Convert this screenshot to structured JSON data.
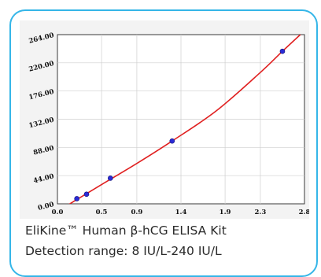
{
  "chart_data": {
    "type": "scatter",
    "title": "",
    "xlabel": "",
    "ylabel": "",
    "xlim": [
      0.0,
      2.8
    ],
    "ylim": [
      0.0,
      264.0
    ],
    "x_ticks": [
      "0.0",
      "0.5",
      "0.9",
      "1.4",
      "1.9",
      "2.3",
      "2.8"
    ],
    "x_tick_values": [
      0.0,
      0.5,
      0.9,
      1.4,
      1.9,
      2.3,
      2.8
    ],
    "y_ticks": [
      "0.00",
      "44.00",
      "88.00",
      "132.00",
      "176.00",
      "220.00",
      "264.00"
    ],
    "y_tick_values": [
      0,
      44,
      88,
      132,
      176,
      220,
      264
    ],
    "grid": true,
    "legend": "none",
    "series": [
      {
        "kind": "points",
        "color": "#2b2bd6",
        "points": [
          {
            "x": 0.22,
            "y": 8
          },
          {
            "x": 0.33,
            "y": 15
          },
          {
            "x": 0.6,
            "y": 40
          },
          {
            "x": 1.3,
            "y": 98
          },
          {
            "x": 2.55,
            "y": 238
          }
        ]
      },
      {
        "kind": "fit-curve",
        "color": "#e02020",
        "points": [
          {
            "x": 0.0,
            "y": -12
          },
          {
            "x": 0.2,
            "y": 5
          },
          {
            "x": 0.5,
            "y": 30
          },
          {
            "x": 0.9,
            "y": 63
          },
          {
            "x": 1.3,
            "y": 98
          },
          {
            "x": 1.8,
            "y": 145
          },
          {
            "x": 2.3,
            "y": 205
          },
          {
            "x": 2.55,
            "y": 238
          },
          {
            "x": 2.8,
            "y": 270
          }
        ]
      }
    ]
  },
  "caption": {
    "line1": "EliKine™ Human β-hCG ELISA Kit",
    "line2": "Detection range: 8 IU/L-240 IU/L"
  }
}
